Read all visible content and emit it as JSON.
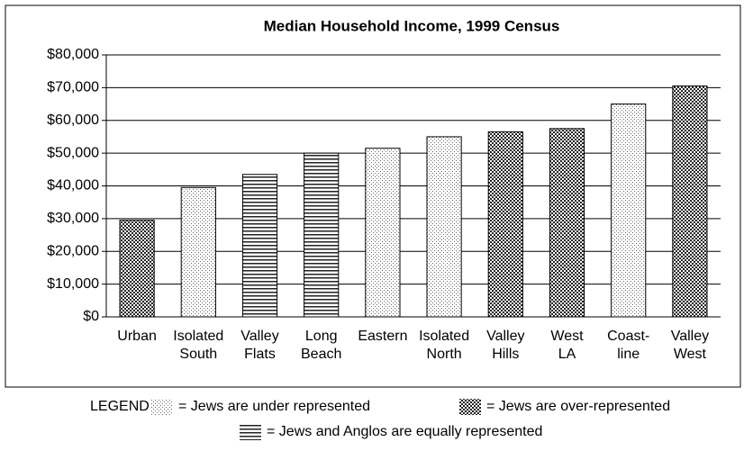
{
  "chart_data": {
    "type": "bar",
    "title": "Median Household Income, 1999 Census",
    "categories": [
      "Urban",
      "Isolated South",
      "Valley Flats",
      "Long Beach",
      "Eastern",
      "Isolated North",
      "Valley Hills",
      "West LA",
      "Coast- line",
      "Valley West"
    ],
    "values": [
      29500,
      39500,
      43500,
      50000,
      51500,
      55000,
      56500,
      57500,
      65000,
      70500
    ],
    "patterns": [
      "checker",
      "dots",
      "lines",
      "lines",
      "dots",
      "dots",
      "checker",
      "checker",
      "dots",
      "checker"
    ],
    "ylim": [
      0,
      80000
    ],
    "yticks": [
      {
        "value": 0,
        "label": "$0"
      },
      {
        "value": 10000,
        "label": "$10,000"
      },
      {
        "value": 20000,
        "label": "$20,000"
      },
      {
        "value": 30000,
        "label": "$30,000"
      },
      {
        "value": 40000,
        "label": "$40,000"
      },
      {
        "value": 50000,
        "label": "$50,000"
      },
      {
        "value": 60000,
        "label": "$60,000"
      },
      {
        "value": 70000,
        "label": "$70,000"
      },
      {
        "value": 80000,
        "label": "$80,000"
      }
    ],
    "grid": true,
    "legend_title": "LEGEND",
    "legend": [
      {
        "pattern": "dots",
        "label": "= Jews are under represented"
      },
      {
        "pattern": "checker",
        "label": "= Jews are over-represented"
      },
      {
        "pattern": "lines",
        "label": "= Jews and Anglos are equally represented"
      }
    ]
  }
}
